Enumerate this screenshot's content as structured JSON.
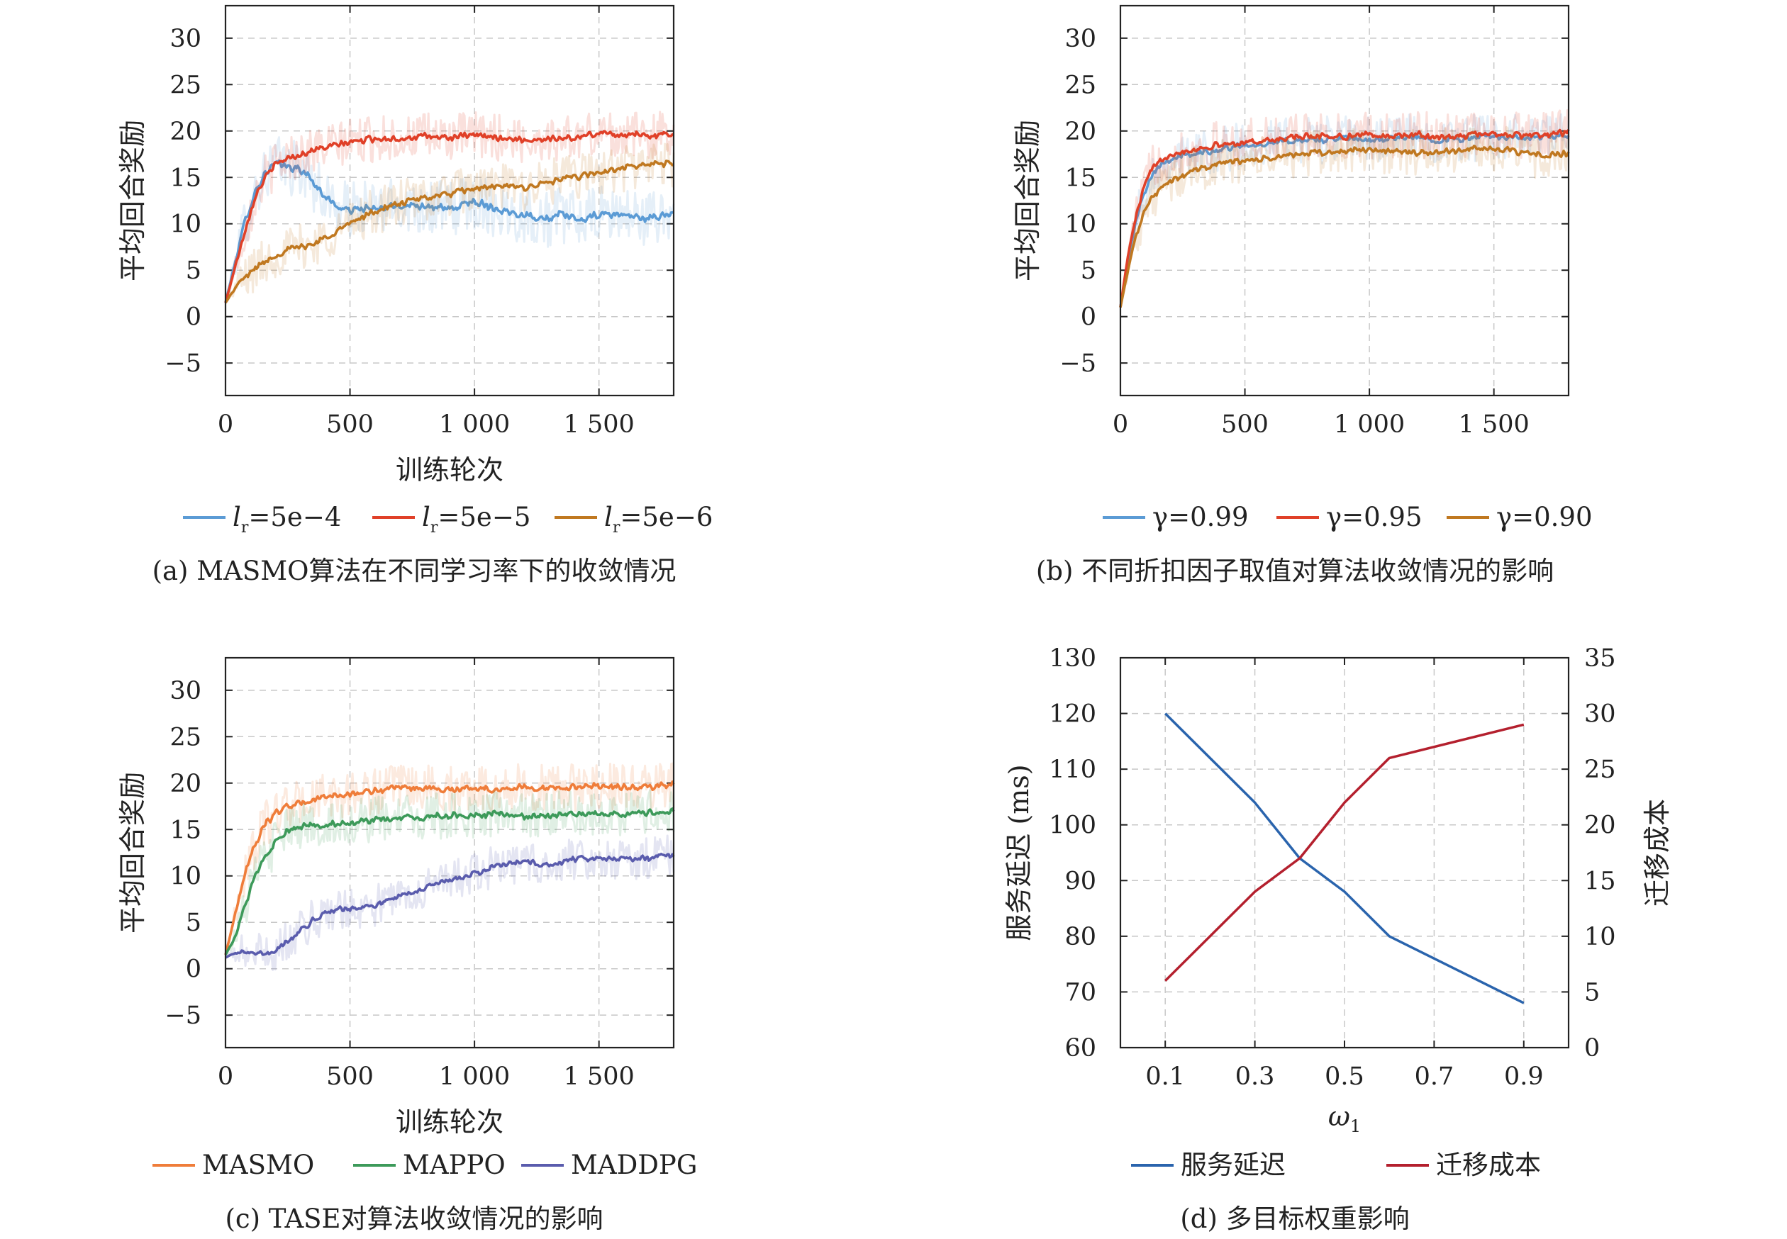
{
  "chart_data": [
    {
      "id": "a",
      "type": "line",
      "caption": "(a) MASMO算法在不同学习率下的收敛情况",
      "xlabel": "训练轮次",
      "ylabel": "平均回合奖励",
      "xlim": [
        0,
        1800
      ],
      "ylim": [
        -8.5,
        33.5
      ],
      "xticks": [
        0,
        500,
        1000,
        1500
      ],
      "xtick_labels": [
        "0",
        "500",
        "1 000",
        "1 500"
      ],
      "yticks": [
        -5,
        0,
        5,
        10,
        15,
        20,
        25,
        30
      ],
      "ytick_labels": [
        "−5",
        "0",
        "5",
        "10",
        "15",
        "20",
        "25",
        "30"
      ],
      "grid": true,
      "legend": "bottom",
      "series": [
        {
          "name": "lr=5e−4",
          "legend_l": "l",
          "legend_sub": "r",
          "legend_rest": "=5e−4",
          "color": "#5b9bd5",
          "noise": 2.2,
          "x": [
            0,
            40,
            80,
            120,
            160,
            200,
            240,
            280,
            320,
            360,
            400,
            440,
            480,
            520,
            560,
            600,
            700,
            800,
            900,
            1000,
            1050,
            1100,
            1200,
            1300,
            1350,
            1400,
            1450,
            1500,
            1600,
            1700,
            1800
          ],
          "y": [
            1.5,
            6,
            10.5,
            13.5,
            15.5,
            16.5,
            16.2,
            16,
            15.5,
            14.2,
            13,
            12,
            11.5,
            11.5,
            11.7,
            11.5,
            12,
            12,
            11.5,
            12.5,
            12,
            11.5,
            11,
            10.5,
            11,
            10.5,
            10.5,
            11,
            11,
            10.5,
            11.2
          ]
        },
        {
          "name": "lr=5e−5",
          "legend_l": "l",
          "legend_sub": "r",
          "legend_rest": "=5e−5",
          "color": "#e04028",
          "noise": 1.8,
          "x": [
            0,
            40,
            80,
            120,
            160,
            200,
            240,
            280,
            320,
            360,
            400,
            450,
            500,
            600,
            700,
            800,
            900,
            1000,
            1100,
            1200,
            1300,
            1400,
            1500,
            1600,
            1700,
            1800
          ],
          "y": [
            1.5,
            5.5,
            9.5,
            13,
            15,
            16.3,
            17,
            17.3,
            17.6,
            18,
            18.2,
            18.5,
            18.8,
            19.2,
            19.2,
            19.4,
            19.3,
            19.5,
            19.3,
            19,
            19.2,
            19.2,
            19.8,
            19.6,
            19.5,
            19.7
          ]
        },
        {
          "name": "lr=5e−6",
          "legend_l": "l",
          "legend_sub": "r",
          "legend_rest": "=5e−6",
          "color": "#c07820",
          "noise": 1.8,
          "x": [
            0,
            50,
            100,
            150,
            200,
            250,
            300,
            350,
            400,
            450,
            500,
            550,
            600,
            700,
            800,
            900,
            1000,
            1100,
            1200,
            1300,
            1400,
            1500,
            1600,
            1700,
            1800
          ],
          "y": [
            1.5,
            3.5,
            4.8,
            5.8,
            6.6,
            7.2,
            7.5,
            7.8,
            8.5,
            9.3,
            10,
            10.8,
            11.3,
            12.2,
            12.8,
            13.2,
            13.8,
            14,
            13.9,
            14.5,
            15,
            15.5,
            16,
            16.4,
            16.5
          ]
        }
      ]
    },
    {
      "id": "b",
      "type": "line",
      "caption": "(b) 不同折扣因子取值对算法收敛情况的影响",
      "xlabel": "",
      "ylabel": "平均回合奖励",
      "xlim": [
        0,
        1800
      ],
      "ylim": [
        -8.5,
        33.5
      ],
      "xticks": [
        0,
        500,
        1000,
        1500
      ],
      "xtick_labels": [
        "0",
        "500",
        "1 000",
        "1 500"
      ],
      "yticks": [
        -5,
        0,
        5,
        10,
        15,
        20,
        25,
        30
      ],
      "ytick_labels": [
        "−5",
        "0",
        "5",
        "10",
        "15",
        "20",
        "25",
        "30"
      ],
      "grid": true,
      "legend": "bottom",
      "series": [
        {
          "name": "γ=0.99",
          "color": "#5b9bd5",
          "noise": 1.8,
          "x": [
            0,
            30,
            60,
            90,
            120,
            150,
            200,
            250,
            300,
            350,
            400,
            500,
            600,
            700,
            800,
            900,
            1000,
            1100,
            1200,
            1300,
            1400,
            1500,
            1600,
            1700,
            1800
          ],
          "y": [
            1,
            6,
            10,
            13,
            15,
            16.2,
            17,
            17.3,
            17.5,
            17.8,
            18,
            18.5,
            18.7,
            19,
            19,
            19.2,
            19,
            19.2,
            19.3,
            19,
            19.2,
            19.5,
            19.2,
            19.3,
            19.5
          ]
        },
        {
          "name": "γ=0.95",
          "color": "#e04028",
          "noise": 1.8,
          "x": [
            0,
            30,
            60,
            90,
            120,
            150,
            200,
            250,
            300,
            350,
            400,
            500,
            600,
            700,
            800,
            900,
            1000,
            1100,
            1200,
            1300,
            1400,
            1500,
            1600,
            1700,
            1800
          ],
          "y": [
            1,
            6.5,
            10.5,
            13.5,
            15.5,
            16.8,
            17.5,
            17.8,
            18,
            18.3,
            18.5,
            18.8,
            19,
            19.3,
            19.5,
            19.4,
            19.6,
            19.4,
            19.6,
            19.3,
            19.5,
            19.8,
            19.5,
            19.6,
            19.8
          ]
        },
        {
          "name": "γ=0.90",
          "color": "#c07820",
          "noise": 1.8,
          "x": [
            0,
            30,
            60,
            90,
            120,
            150,
            200,
            250,
            300,
            350,
            400,
            500,
            600,
            700,
            800,
            900,
            1000,
            1100,
            1200,
            1300,
            1400,
            1500,
            1600,
            1700,
            1800
          ],
          "y": [
            1,
            5,
            8.5,
            11,
            12.5,
            13.5,
            14.5,
            15.2,
            15.8,
            16.2,
            16.5,
            16.8,
            17,
            17.5,
            17.6,
            17.8,
            18,
            17.8,
            17.6,
            17.8,
            18,
            18.2,
            17.6,
            17.4,
            17.5
          ]
        }
      ]
    },
    {
      "id": "c",
      "type": "line",
      "caption": "(c) TASE对算法收敛情况的影响",
      "xlabel": "训练轮次",
      "ylabel": "平均回合奖励",
      "xlim": [
        0,
        1800
      ],
      "ylim": [
        -8.5,
        33.5
      ],
      "xticks": [
        0,
        500,
        1000,
        1500
      ],
      "xtick_labels": [
        "0",
        "500",
        "1 000",
        "1 500"
      ],
      "yticks": [
        -5,
        0,
        5,
        10,
        15,
        20,
        25,
        30
      ],
      "ytick_labels": [
        "−5",
        "0",
        "5",
        "10",
        "15",
        "20",
        "25",
        "30"
      ],
      "grid": true,
      "legend": "bottom",
      "series": [
        {
          "name": "MASMO",
          "color": "#ef7d3a",
          "noise": 1.8,
          "x": [
            0,
            40,
            80,
            120,
            160,
            200,
            250,
            300,
            350,
            400,
            500,
            600,
            700,
            800,
            900,
            1000,
            1100,
            1200,
            1300,
            1400,
            1500,
            1600,
            1700,
            1800
          ],
          "y": [
            1.5,
            6,
            10.5,
            13.5,
            15.5,
            16.8,
            17.5,
            17.8,
            18.2,
            18.5,
            18.8,
            19.2,
            19.4,
            19.5,
            19.3,
            19.5,
            19.3,
            19.6,
            19.4,
            19.5,
            19.8,
            19.5,
            19.6,
            19.8
          ]
        },
        {
          "name": "MAPPO",
          "color": "#3d9a5a",
          "noise": 1.8,
          "x": [
            0,
            40,
            80,
            120,
            160,
            200,
            250,
            300,
            350,
            400,
            500,
            600,
            700,
            800,
            900,
            1000,
            1100,
            1200,
            1300,
            1400,
            1500,
            1600,
            1700,
            1800
          ],
          "y": [
            1.5,
            3.5,
            7,
            10,
            12,
            13.5,
            14.8,
            15.3,
            15.5,
            15.5,
            15.8,
            16,
            16.2,
            16.3,
            16.5,
            16.5,
            16.7,
            16.3,
            16.5,
            16.7,
            16.8,
            16.6,
            16.8,
            17
          ]
        },
        {
          "name": "MADDPG",
          "color": "#5a5cad",
          "noise": 1.6,
          "x": [
            0,
            50,
            100,
            150,
            200,
            250,
            300,
            350,
            400,
            450,
            500,
            600,
            700,
            800,
            900,
            1000,
            1100,
            1200,
            1300,
            1400,
            1500,
            1600,
            1700,
            1800
          ],
          "y": [
            1.2,
            1.8,
            1.8,
            1.5,
            2,
            3,
            4,
            5.2,
            6,
            6.4,
            6.5,
            6.8,
            7.8,
            8.8,
            9.5,
            10.2,
            11.2,
            11.5,
            11.2,
            11.8,
            12,
            11.8,
            12,
            12.2
          ]
        }
      ]
    },
    {
      "id": "d",
      "type": "line",
      "caption": "(d) 多目标权重影响",
      "xlabel": "ω",
      "xlabel_sub": "1",
      "ylabel": "服务延迟 (ms)",
      "ylabel_right": "迁移成本",
      "xlim": [
        0,
        1.0
      ],
      "ylim": [
        60,
        130
      ],
      "ylim_right": [
        0,
        35
      ],
      "xticks": [
        0.1,
        0.3,
        0.5,
        0.7,
        0.9
      ],
      "xtick_labels": [
        "0.1",
        "0.3",
        "0.5",
        "0.7",
        "0.9"
      ],
      "yticks": [
        60,
        70,
        80,
        90,
        100,
        110,
        120,
        130
      ],
      "ytick_labels": [
        "60",
        "70",
        "80",
        "90",
        "100",
        "110",
        "120",
        "130"
      ],
      "yticks_right": [
        0,
        5,
        10,
        15,
        20,
        25,
        30,
        35
      ],
      "ytick_labels_right": [
        "0",
        "5",
        "10",
        "15",
        "20",
        "25",
        "30",
        "35"
      ],
      "grid": true,
      "legend": "bottom",
      "series": [
        {
          "name": "服务延迟",
          "axis": "left",
          "color": "#2a64ad",
          "x": [
            0.1,
            0.3,
            0.4,
            0.5,
            0.6,
            0.9
          ],
          "y": [
            120,
            104,
            94,
            88,
            80,
            68
          ]
        },
        {
          "name": "迁移成本",
          "axis": "right",
          "color": "#b4202e",
          "x": [
            0.1,
            0.3,
            0.4,
            0.5,
            0.6,
            0.9
          ],
          "y": [
            6,
            14,
            17,
            22,
            26,
            29
          ]
        }
      ]
    }
  ]
}
